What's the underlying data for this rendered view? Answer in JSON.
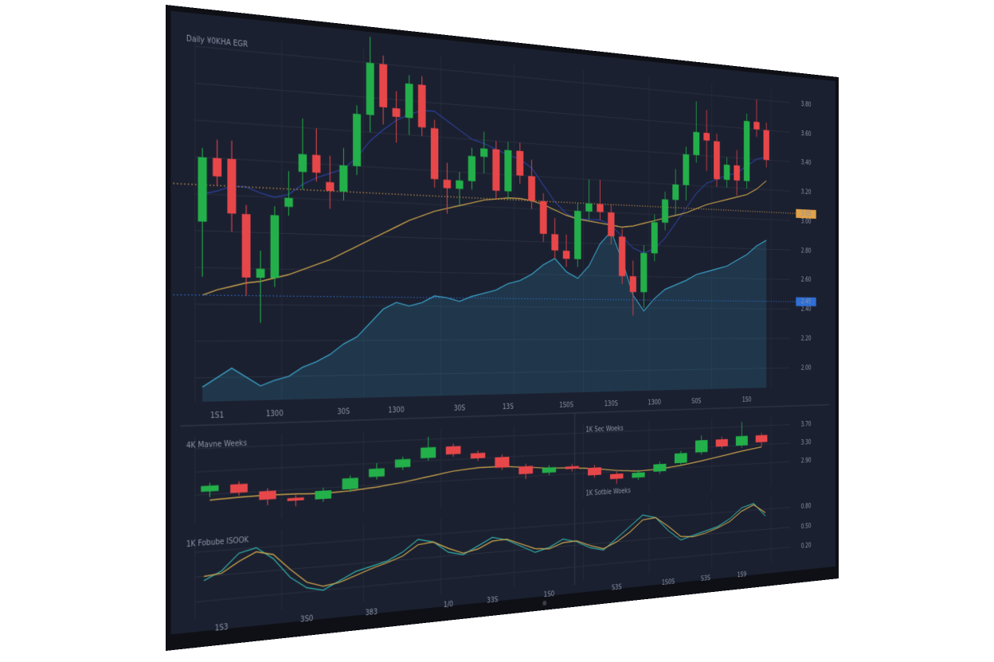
{
  "chart_data": [
    {
      "type": "candlestick",
      "title": "Daily ¥0KHA EGR",
      "categories": [
        null,
        "1S1",
        null,
        null,
        null,
        "1300",
        null,
        null,
        null,
        null,
        "30S",
        null,
        null,
        null,
        "1300",
        null,
        null,
        null,
        null,
        "30S",
        null,
        null,
        null,
        "13S",
        null,
        null,
        null,
        null,
        "1S0S",
        null,
        null,
        null,
        "130S",
        null,
        null,
        null,
        "1300",
        null,
        null,
        null,
        "S0S",
        null,
        null,
        null,
        null,
        "1S0",
        null,
        null
      ],
      "open": [
        2.85,
        3.2,
        3.2,
        2.9,
        2.55,
        2.55,
        2.95,
        3.15,
        3.25,
        3.1,
        3.05,
        3.2,
        3.5,
        3.8,
        3.55,
        3.5,
        3.7,
        3.45,
        3.15,
        3.1,
        3.15,
        3.3,
        3.35,
        3.1,
        3.35,
        3.2,
        3.05,
        2.85,
        2.75,
        2.7,
        3.0,
        3.05,
        3.0,
        2.85,
        2.6,
        2.5,
        2.75,
        2.95,
        3.1,
        3.2,
        3.4,
        3.55,
        3.5,
        3.25,
        3.35,
        3.25,
        3.65,
        3.6
      ],
      "high": [
        3.25,
        3.3,
        3.3,
        2.95,
        2.7,
        2.95,
        3.15,
        3.45,
        3.4,
        3.25,
        3.3,
        3.55,
        3.95,
        3.85,
        3.65,
        3.75,
        3.75,
        3.5,
        3.25,
        3.2,
        3.35,
        3.45,
        3.4,
        3.4,
        3.4,
        3.3,
        3.1,
        2.95,
        2.85,
        3.05,
        3.2,
        3.2,
        3.05,
        2.9,
        2.7,
        2.8,
        3.0,
        3.15,
        3.3,
        3.45,
        3.75,
        3.7,
        3.55,
        3.4,
        3.45,
        3.7,
        3.8,
        3.65
      ],
      "low": [
        2.55,
        3.05,
        2.8,
        2.45,
        2.3,
        2.5,
        2.9,
        3.05,
        3.1,
        2.95,
        3.0,
        3.15,
        3.4,
        3.45,
        3.35,
        3.4,
        3.4,
        3.1,
        2.95,
        3.0,
        3.1,
        3.2,
        3.05,
        3.05,
        3.15,
        3.0,
        2.8,
        2.7,
        2.65,
        2.65,
        2.95,
        2.95,
        2.8,
        2.55,
        2.35,
        2.4,
        2.7,
        2.9,
        3.0,
        3.1,
        3.35,
        3.3,
        3.2,
        3.2,
        3.15,
        3.2,
        3.55,
        3.35
      ],
      "close": [
        3.2,
        3.1,
        2.9,
        2.55,
        2.6,
        2.9,
        3.0,
        3.25,
        3.15,
        3.05,
        3.2,
        3.5,
        3.8,
        3.55,
        3.5,
        3.7,
        3.45,
        3.15,
        3.1,
        3.15,
        3.3,
        3.35,
        3.1,
        3.35,
        3.2,
        3.05,
        2.85,
        2.75,
        2.7,
        3.0,
        3.05,
        3.0,
        2.85,
        2.6,
        2.5,
        2.75,
        2.95,
        3.1,
        3.2,
        3.4,
        3.55,
        3.5,
        3.25,
        3.35,
        3.25,
        3.65,
        3.6,
        3.4
      ],
      "up_color": "#23b04a",
      "down_color": "#e8474a",
      "lines": [
        {
          "color": "#3aa3c9",
          "area": true,
          "values": [
            1.95,
            2.0,
            2.05,
            2.0,
            1.95,
            1.98,
            2.0,
            2.05,
            2.08,
            2.12,
            2.18,
            2.22,
            2.3,
            2.38,
            2.42,
            2.4,
            2.42,
            2.46,
            2.45,
            2.43,
            2.46,
            2.48,
            2.5,
            2.54,
            2.56,
            2.6,
            2.66,
            2.7,
            2.62,
            2.58,
            2.66,
            2.8,
            2.88,
            2.7,
            2.48,
            2.38,
            2.46,
            2.52,
            2.55,
            2.58,
            2.62,
            2.64,
            2.66,
            2.68,
            2.72,
            2.76,
            2.82,
            2.86
          ]
        },
        {
          "color": "#2b3f9a",
          "values": [
            3.0,
            3.02,
            3.05,
            3.05,
            3.02,
            3.0,
            3.02,
            3.08,
            3.12,
            3.15,
            3.18,
            3.25,
            3.35,
            3.42,
            3.48,
            3.52,
            3.55,
            3.55,
            3.5,
            3.45,
            3.4,
            3.38,
            3.35,
            3.32,
            3.3,
            3.25,
            3.15,
            3.05,
            2.98,
            2.95,
            2.95,
            2.95,
            2.92,
            2.85,
            2.78,
            2.75,
            2.78,
            2.85,
            2.95,
            3.05,
            3.15,
            3.22,
            3.25,
            3.28,
            3.3,
            3.35,
            3.4,
            3.42
          ]
        },
        {
          "color": "#c9a24a",
          "values": [
            2.45,
            2.48,
            2.5,
            2.52,
            2.53,
            2.55,
            2.57,
            2.6,
            2.63,
            2.66,
            2.7,
            2.74,
            2.78,
            2.82,
            2.86,
            2.9,
            2.93,
            2.96,
            2.98,
            3.0,
            3.02,
            3.04,
            3.05,
            3.06,
            3.06,
            3.05,
            3.03,
            3.0,
            2.97,
            2.95,
            2.94,
            2.93,
            2.92,
            2.91,
            2.92,
            2.94,
            2.96,
            2.98,
            3.0,
            3.02,
            3.05,
            3.08,
            3.1,
            3.12,
            3.14,
            3.16,
            3.2,
            3.26
          ]
        }
      ],
      "markers": [
        {
          "value": 3.05,
          "color": "#e0a24a"
        },
        {
          "value": 2.45,
          "color": "#2f6fd6"
        }
      ],
      "ylim": [
        1.87,
        3.88
      ],
      "yticks": [
        {
          "value": 2.0,
          "label": "2.00"
        },
        {
          "value": 2.2,
          "label": "2.20"
        },
        {
          "value": 2.4,
          "label": "2.40"
        },
        {
          "value": 2.6,
          "label": "2.60"
        },
        {
          "value": 2.8,
          "label": "2.80"
        },
        {
          "value": 3.0,
          "label": "3.00"
        },
        {
          "value": 3.2,
          "label": "3.20"
        },
        {
          "value": 3.4,
          "label": "3.40"
        },
        {
          "value": 3.6,
          "label": "3.60"
        },
        {
          "value": 3.8,
          "label": "3.80"
        }
      ],
      "grid": true
    },
    {
      "type": "candlestick",
      "title": "4K  Mavne Weeks",
      "subtitle": "1K  Sec Woeks",
      "categories": [
        null,
        null,
        null,
        null,
        null,
        null,
        null,
        null,
        null,
        null,
        null,
        null,
        null,
        null,
        null,
        null,
        null,
        null,
        null,
        null,
        null,
        null,
        null,
        null
      ],
      "open": [
        2.95,
        3.05,
        2.9,
        2.75,
        2.7,
        2.85,
        3.05,
        3.2,
        3.35,
        3.55,
        3.4,
        3.3,
        3.1,
        2.95,
        3.05,
        3.0,
        2.85,
        2.75,
        2.85,
        3.0,
        3.2,
        3.45,
        3.3,
        3.5
      ],
      "high": [
        3.1,
        3.1,
        2.95,
        2.8,
        2.9,
        3.1,
        3.3,
        3.4,
        3.75,
        3.6,
        3.45,
        3.35,
        3.15,
        3.1,
        3.1,
        3.05,
        2.9,
        2.9,
        3.05,
        3.25,
        3.55,
        3.5,
        3.8,
        3.55
      ],
      "low": [
        2.85,
        2.85,
        2.65,
        2.6,
        2.65,
        2.8,
        3.0,
        3.15,
        3.3,
        3.35,
        3.25,
        3.05,
        2.85,
        2.9,
        2.95,
        2.8,
        2.65,
        2.7,
        2.8,
        2.95,
        3.15,
        3.25,
        3.25,
        3.25
      ],
      "close": [
        3.05,
        2.9,
        2.75,
        2.7,
        2.85,
        3.05,
        3.2,
        3.35,
        3.55,
        3.4,
        3.3,
        3.1,
        2.95,
        3.05,
        3.0,
        2.85,
        2.75,
        2.85,
        3.0,
        3.2,
        3.45,
        3.3,
        3.5,
        3.35
      ],
      "up_color": "#23b04a",
      "down_color": "#e8474a",
      "lines": [
        {
          "color": "#c9a24a",
          "values": [
            2.8,
            2.82,
            2.83,
            2.82,
            2.8,
            2.82,
            2.86,
            2.92,
            3.0,
            3.08,
            3.12,
            3.12,
            3.08,
            3.04,
            3.02,
            2.98,
            2.92,
            2.88,
            2.9,
            2.95,
            3.02,
            3.1,
            3.18,
            3.25
          ]
        }
      ],
      "ylim": [
        2.4,
        3.9
      ],
      "yticks": [
        {
          "value": 2.9,
          "label": "2.90"
        },
        {
          "value": 3.3,
          "label": "3.30"
        },
        {
          "value": 3.7,
          "label": "3.70"
        }
      ],
      "grid": true
    },
    {
      "type": "line",
      "title": "1K  Fobube ISOOK",
      "subtitle": "1K  Sotbie Woeks",
      "categories": [
        null,
        "1S3",
        null,
        null,
        null,
        null,
        "3S0",
        null,
        null,
        null,
        "383",
        null,
        null,
        null,
        null,
        "1/0",
        null,
        null,
        "33S",
        null,
        null,
        null,
        "1S0",
        null,
        null,
        null,
        null,
        "S3S",
        null,
        null,
        null,
        "1S0S",
        null,
        null,
        "S3S",
        null,
        null,
        "1S9",
        null,
        null
      ],
      "series": [
        {
          "color": "#2fa7a0",
          "values": [
            0.45,
            0.55,
            0.75,
            0.8,
            0.65,
            0.4,
            0.25,
            0.2,
            0.3,
            0.4,
            0.45,
            0.5,
            0.6,
            0.75,
            0.7,
            0.55,
            0.5,
            0.6,
            0.7,
            0.65,
            0.55,
            0.45,
            0.5,
            0.6,
            0.55,
            0.45,
            0.4,
            0.55,
            0.7,
            0.85,
            0.8,
            0.6,
            0.45,
            0.5,
            0.55,
            0.6,
            0.7,
            0.85,
            0.9,
            0.7
          ]
        },
        {
          "color": "#c9a24a",
          "values": [
            0.5,
            0.52,
            0.65,
            0.75,
            0.7,
            0.5,
            0.32,
            0.25,
            0.28,
            0.35,
            0.42,
            0.48,
            0.55,
            0.68,
            0.7,
            0.6,
            0.52,
            0.56,
            0.65,
            0.66,
            0.58,
            0.5,
            0.48,
            0.55,
            0.56,
            0.48,
            0.42,
            0.5,
            0.62,
            0.78,
            0.8,
            0.66,
            0.5,
            0.48,
            0.52,
            0.58,
            0.66,
            0.8,
            0.88,
            0.75
          ]
        }
      ],
      "ylim": [
        0,
        1
      ],
      "yticks": [
        {
          "value": 0.2,
          "label": "0.20"
        },
        {
          "value": 0.5,
          "label": "0.50"
        },
        {
          "value": 0.8,
          "label": "0.80"
        }
      ],
      "grid": true
    }
  ]
}
